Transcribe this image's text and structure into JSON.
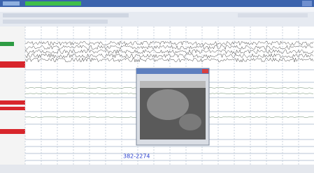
{
  "overlay_label": "382-2274"
}
